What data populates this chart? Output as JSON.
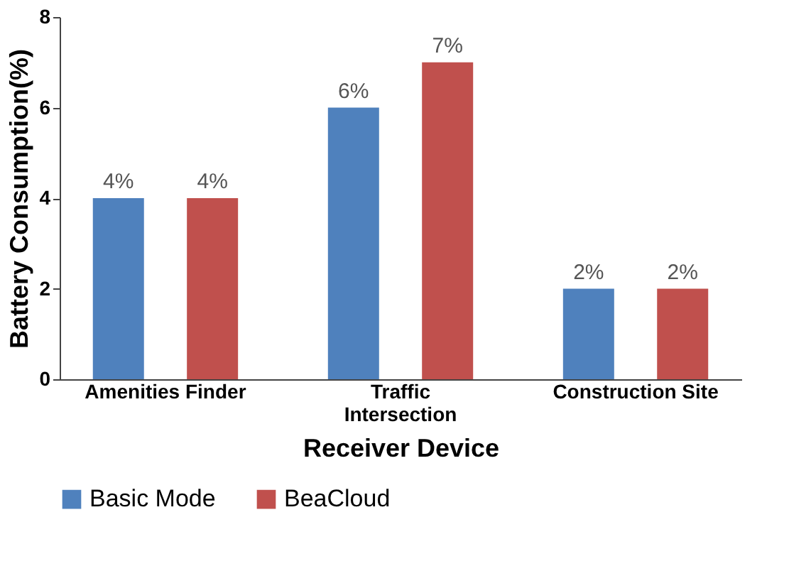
{
  "chart_data": {
    "type": "bar",
    "xlabel": "Receiver Device",
    "ylabel": "Battery Consumption(%)",
    "categories": [
      "Amenities Finder",
      "Traffic\nIntersection",
      "Construction Site"
    ],
    "series": [
      {
        "name": "Basic Mode",
        "color": "#4f81bd",
        "values": [
          4,
          6,
          2
        ],
        "value_labels": [
          "4%",
          "6%",
          "2%"
        ]
      },
      {
        "name": "BeaCloud",
        "color": "#c0504d",
        "values": [
          4,
          7,
          2
        ],
        "value_labels": [
          "4%",
          "7%",
          "2%"
        ]
      }
    ],
    "ylim": [
      0,
      8
    ],
    "yticks": [
      0,
      2,
      4,
      6,
      8
    ],
    "grid": false,
    "legend": "bottom"
  }
}
